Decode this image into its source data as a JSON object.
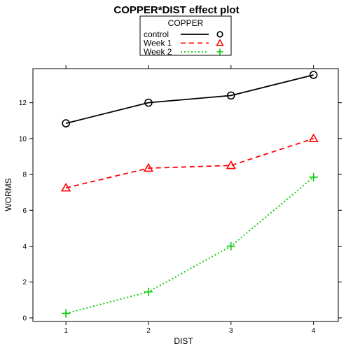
{
  "chart_data": {
    "type": "line",
    "title": "COPPER*DIST effect plot",
    "xlabel": "DIST",
    "ylabel": "WORMS",
    "x": [
      1,
      2,
      3,
      4
    ],
    "xlim": [
      0.6,
      4.3
    ],
    "ylim": [
      -0.2,
      13.9
    ],
    "xticks": [
      1,
      2,
      3,
      4
    ],
    "yticks": [
      0,
      2,
      4,
      6,
      8,
      10,
      12
    ],
    "grid": false,
    "legend": {
      "title": "COPPER",
      "position": "top-center"
    },
    "series": [
      {
        "name": "control",
        "values": [
          10.85,
          12.0,
          12.4,
          13.55
        ],
        "color": "#000000",
        "line_style": "solid",
        "marker": "circle"
      },
      {
        "name": "Week 1",
        "values": [
          7.25,
          8.35,
          8.5,
          10.0
        ],
        "color": "#ff0000",
        "line_style": "dashed",
        "marker": "triangle"
      },
      {
        "name": "Week 2",
        "values": [
          0.25,
          1.45,
          4.0,
          7.85
        ],
        "color": "#00cc00",
        "line_style": "dotted",
        "marker": "plus"
      }
    ]
  }
}
